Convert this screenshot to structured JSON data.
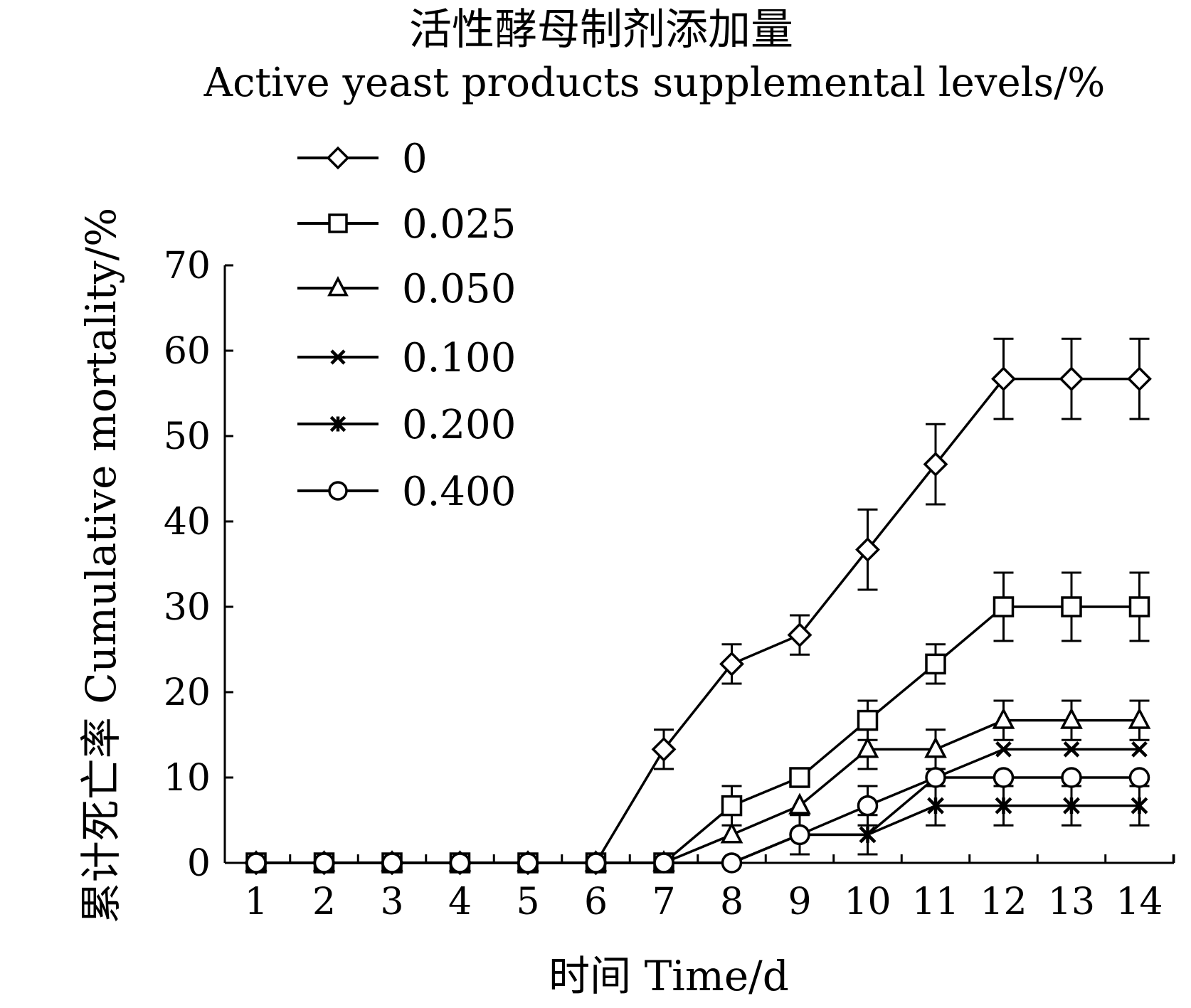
{
  "chart_data": {
    "type": "line",
    "title_zh": "活性酵母制剂添加量",
    "title_en": "Active yeast products supplemental levels/%",
    "xlabel": "时间  Time/d",
    "ylabel": "累计死亡率  Cumulative mortality/%",
    "x": [
      1,
      2,
      3,
      4,
      5,
      6,
      7,
      8,
      9,
      10,
      11,
      12,
      13,
      14
    ],
    "ylim": [
      0,
      70
    ],
    "yticks": [
      0,
      10,
      20,
      30,
      40,
      50,
      60,
      70
    ],
    "legend_position": "top-left",
    "grid": false,
    "series": [
      {
        "name": "0",
        "marker": "diamond",
        "values": [
          0,
          0,
          0,
          0,
          0,
          0,
          13.3,
          23.3,
          26.7,
          36.7,
          46.7,
          56.7,
          56.7,
          56.7
        ],
        "errors": [
          0,
          0,
          0,
          0,
          0,
          0,
          2.3,
          2.3,
          2.3,
          4.7,
          4.7,
          4.7,
          4.7,
          4.7
        ]
      },
      {
        "name": "0.025",
        "marker": "square",
        "values": [
          0,
          0,
          0,
          0,
          0,
          0,
          0,
          6.7,
          10,
          16.7,
          23.3,
          30,
          30,
          30
        ],
        "errors": [
          0,
          0,
          0,
          0,
          0,
          0,
          0,
          2.3,
          0,
          2.3,
          2.3,
          4,
          4,
          4
        ]
      },
      {
        "name": "0.050",
        "marker": "triangle",
        "values": [
          0,
          0,
          0,
          0,
          0,
          0,
          0,
          3.3,
          6.7,
          13.3,
          13.3,
          16.7,
          16.7,
          16.7
        ],
        "errors": [
          0,
          0,
          0,
          0,
          0,
          0,
          0,
          0,
          0,
          2.3,
          2.3,
          2.3,
          2.3,
          2.3
        ]
      },
      {
        "name": "0.100",
        "marker": "x",
        "values": [
          0,
          0,
          0,
          0,
          0,
          0,
          0,
          0,
          3.3,
          3.3,
          10,
          13.3,
          13.3,
          13.3
        ],
        "errors": [
          0,
          0,
          0,
          0,
          0,
          0,
          0,
          0,
          0,
          0,
          0,
          0,
          0,
          0
        ]
      },
      {
        "name": "0.200",
        "marker": "star",
        "values": [
          0,
          0,
          0,
          0,
          0,
          0,
          0,
          0,
          3.3,
          3.3,
          6.7,
          6.7,
          6.7,
          6.7
        ],
        "errors": [
          0,
          0,
          0,
          0,
          0,
          0,
          0,
          0,
          2.3,
          2.3,
          2.3,
          2.3,
          2.3,
          2.3
        ]
      },
      {
        "name": "0.400",
        "marker": "circle",
        "values": [
          0,
          0,
          0,
          0,
          0,
          0,
          0,
          0,
          3.3,
          6.7,
          10,
          10,
          10,
          10
        ],
        "errors": [
          0,
          0,
          0,
          0,
          0,
          0,
          0,
          0,
          0,
          2.3,
          0,
          0,
          0,
          0
        ]
      }
    ]
  }
}
